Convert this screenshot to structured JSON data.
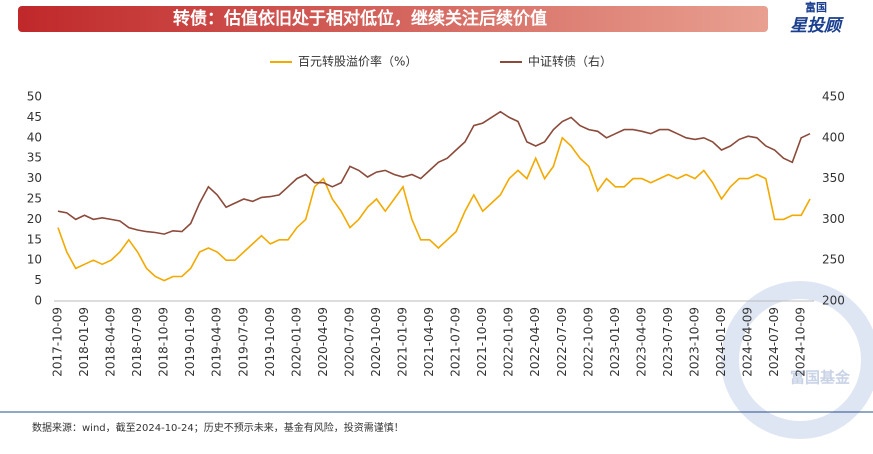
{
  "header": {
    "title": "转债：估值依旧处于相对低位，继续关注后续价值",
    "logo_small": "富国",
    "logo_big": "星投顾"
  },
  "chart_data": {
    "type": "line",
    "categories": [
      "2017-10-09",
      null,
      null,
      "2018-01-09",
      null,
      null,
      "2018-04-09",
      null,
      null,
      "2018-07-09",
      null,
      null,
      "2018-10-09",
      null,
      null,
      "2019-01-09",
      null,
      null,
      "2019-04-09",
      null,
      null,
      "2019-07-09",
      null,
      null,
      "2019-10-09",
      null,
      null,
      "2020-01-09",
      null,
      null,
      "2020-04-09",
      null,
      null,
      "2020-07-09",
      null,
      null,
      "2020-10-09",
      null,
      null,
      "2021-01-09",
      null,
      null,
      "2021-04-09",
      null,
      null,
      "2021-07-09",
      null,
      null,
      "2021-10-09",
      null,
      null,
      "2022-01-09",
      null,
      null,
      "2022-04-09",
      null,
      null,
      "2022-07-09",
      null,
      null,
      "2022-10-09",
      null,
      null,
      "2023-01-09",
      null,
      null,
      "2023-04-09",
      null,
      null,
      "2023-07-09",
      null,
      null,
      "2023-10-09",
      null,
      null,
      "2024-01-09",
      null,
      null,
      "2024-04-09",
      null,
      null,
      "2024-07-09",
      null,
      null,
      "2024-10-09",
      null
    ],
    "series": [
      {
        "name": "百元转股溢价率（%）",
        "color": "#F2A900",
        "axis": "y",
        "values": [
          18,
          12,
          8,
          9,
          10,
          9,
          10,
          12,
          15,
          12,
          8,
          6,
          5,
          6,
          6,
          8,
          12,
          13,
          12,
          10,
          10,
          12,
          14,
          16,
          14,
          15,
          15,
          18,
          20,
          28,
          30,
          25,
          22,
          18,
          20,
          23,
          25,
          22,
          25,
          28,
          20,
          15,
          15,
          13,
          15,
          17,
          22,
          26,
          22,
          24,
          26,
          30,
          32,
          30,
          35,
          30,
          33,
          40,
          38,
          35,
          33,
          27,
          30,
          28,
          28,
          30,
          30,
          29,
          30,
          31,
          30,
          31,
          30,
          32,
          29,
          25,
          28,
          30,
          30,
          31,
          30,
          20,
          20,
          21,
          21,
          25
        ]
      },
      {
        "name": "中证转债（右）",
        "color": "#8B4A3A",
        "axis": "y2",
        "values": [
          310,
          308,
          300,
          305,
          300,
          302,
          300,
          298,
          290,
          287,
          285,
          284,
          282,
          286,
          285,
          295,
          320,
          340,
          330,
          315,
          320,
          325,
          322,
          327,
          328,
          330,
          340,
          350,
          355,
          345,
          345,
          340,
          345,
          365,
          360,
          352,
          358,
          360,
          355,
          352,
          355,
          350,
          360,
          370,
          375,
          385,
          395,
          415,
          418,
          425,
          432,
          425,
          420,
          395,
          390,
          395,
          410,
          420,
          425,
          415,
          410,
          408,
          400,
          405,
          410,
          410,
          408,
          405,
          410,
          410,
          405,
          400,
          398,
          400,
          395,
          385,
          390,
          398,
          402,
          400,
          390,
          385,
          375,
          370,
          400,
          405
        ]
      }
    ],
    "ylim": [
      0,
      50
    ],
    "yticks": [
      0,
      5,
      10,
      15,
      20,
      25,
      30,
      35,
      40,
      45,
      50
    ],
    "y2lim": [
      200,
      450
    ],
    "y2ticks": [
      200,
      250,
      300,
      350,
      400,
      450
    ],
    "footnote": "数据来源：wind，截至2024-10-24；历史不预示未来，基金有风险，投资需谨慎！",
    "watermark": "富国基金"
  }
}
